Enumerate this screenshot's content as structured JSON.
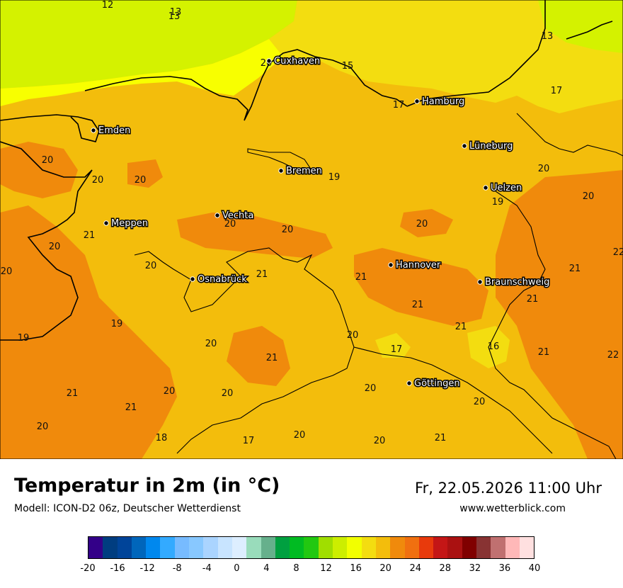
{
  "map": {
    "cities": [
      {
        "name": "Cuxhaven"
      },
      {
        "name": "Hamburg"
      },
      {
        "name": "Emden"
      },
      {
        "name": "Lüneburg"
      },
      {
        "name": "Bremen"
      },
      {
        "name": "Uelzen"
      },
      {
        "name": "Vechta"
      },
      {
        "name": "Meppen"
      },
      {
        "name": "Hannover"
      },
      {
        "name": "Osnabrück"
      },
      {
        "name": "Braunschweig"
      },
      {
        "name": "Göttingen"
      }
    ],
    "temperatures": [
      "12",
      "13",
      "13",
      "13",
      "20",
      "15",
      "17",
      "17",
      "20",
      "20",
      "20",
      "19",
      "20",
      "20",
      "19",
      "21",
      "20",
      "20",
      "20",
      "20",
      "22",
      "20",
      "20",
      "21",
      "21",
      "21",
      "21",
      "21",
      "21",
      "19",
      "19",
      "20",
      "17",
      "16",
      "21",
      "22",
      "21",
      "20",
      "21",
      "20",
      "20",
      "21",
      "20",
      "20",
      "18",
      "17",
      "20",
      "20",
      "21",
      "20"
    ],
    "colors": {
      "land_base": "#f3bd0c",
      "land_warm": "#f08a0c",
      "sea_cool": "#d4f200",
      "sea_yellow": "#f8ff00",
      "coast_yellow": "#f3dd10",
      "border": "#000000"
    }
  },
  "footer": {
    "title": "Temperatur in 2m (in °C)",
    "model": "Modell: ICON-D2 06z, Deutscher Wetterdienst",
    "datetime": "Fr, 22.05.2026 11:00 Uhr",
    "website": "www.wetterblick.com"
  },
  "legend": {
    "colors": [
      "#330088",
      "#003d80",
      "#004499",
      "#0066bb",
      "#0088ee",
      "#33aaff",
      "#77bbff",
      "#88c8ff",
      "#aad4ff",
      "#c8e4ff",
      "#ddeeff",
      "#99dcbb",
      "#66b08c",
      "#00a040",
      "#00bb22",
      "#22c811",
      "#a0de00",
      "#ccee00",
      "#f2ff00",
      "#f3dd10",
      "#f3bd0c",
      "#f08a0c",
      "#f07010",
      "#e83a0c",
      "#c41616",
      "#aa1111",
      "#800000",
      "#883333",
      "#c07070",
      "#ffb8b8",
      "#ffe0e0"
    ],
    "ticks": [
      "-20",
      "-16",
      "-12",
      "-8",
      "-4",
      "0",
      "4",
      "8",
      "12",
      "16",
      "20",
      "24",
      "28",
      "32",
      "36",
      "40"
    ]
  }
}
